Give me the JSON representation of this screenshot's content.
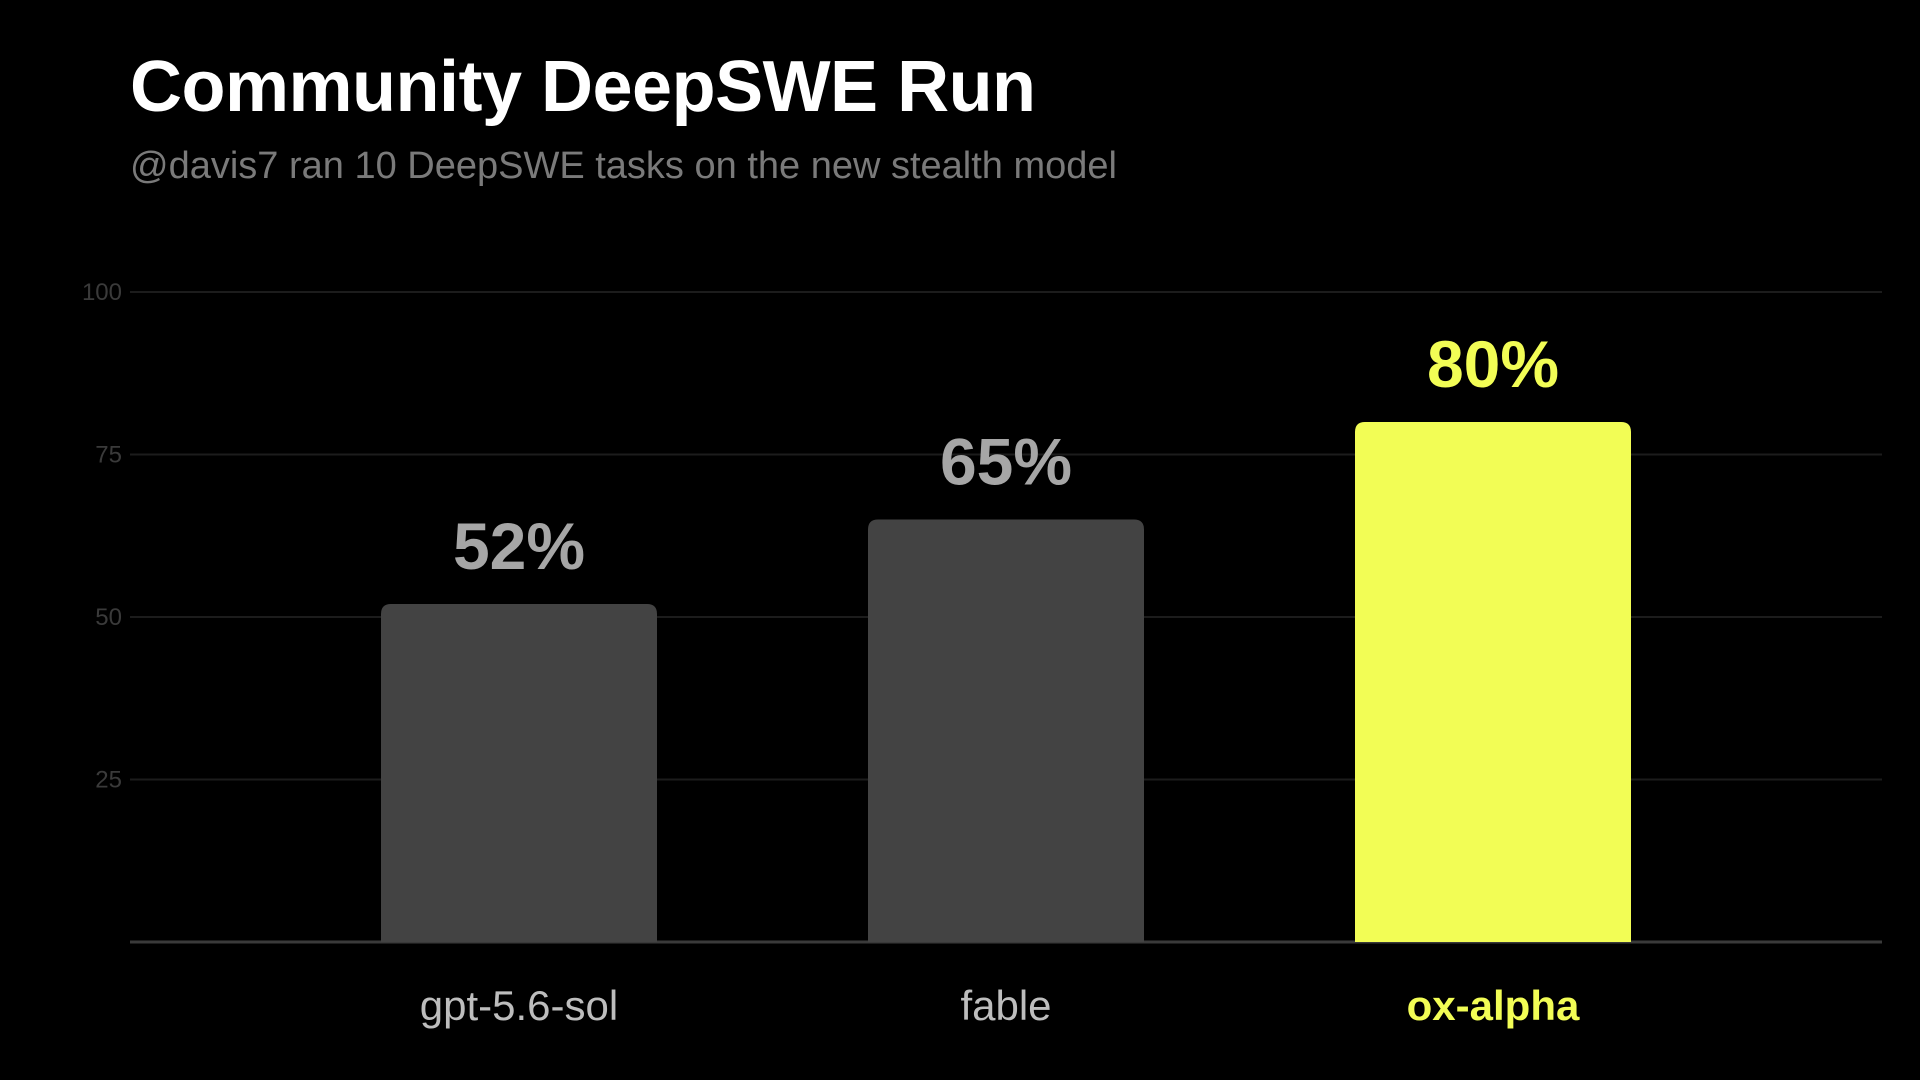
{
  "title": "Community DeepSWE Run",
  "subtitle": "@davis7 ran 10 DeepSWE tasks on the new stealth model",
  "colors": {
    "background": "#000000",
    "bar_default": "#434343",
    "bar_highlight": "#f2fd55",
    "value_label_default": "#a6a6a6",
    "category_label_default": "#bdbdbd",
    "gridline": "#1c1c1c",
    "baseline": "#3a3a3a"
  },
  "chart_data": {
    "type": "bar",
    "categories": [
      "gpt-5.6-sol",
      "fable",
      "ox-alpha"
    ],
    "values": [
      52,
      65,
      80
    ],
    "value_labels": [
      "52%",
      "65%",
      "80%"
    ],
    "highlight": [
      false,
      false,
      true
    ],
    "ylim": [
      0,
      100
    ],
    "yticks": [
      25,
      50,
      75,
      100
    ],
    "grid": true,
    "xlabel": "",
    "ylabel": ""
  }
}
